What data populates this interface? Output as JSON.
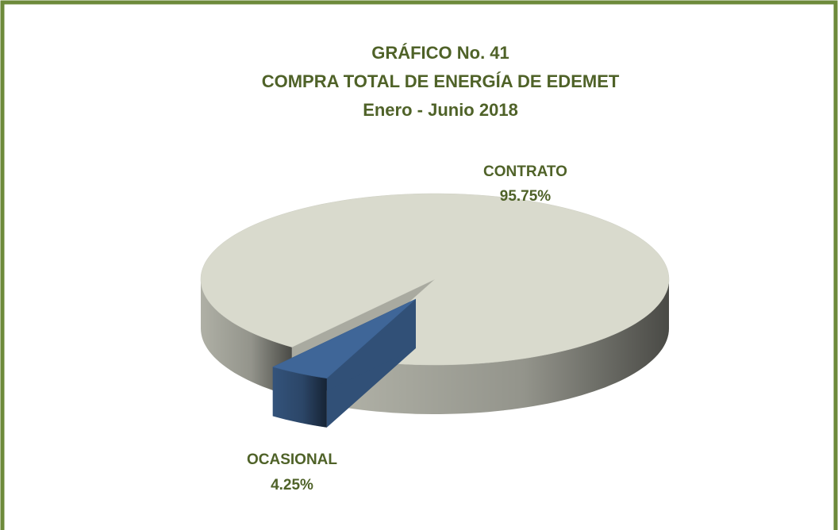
{
  "chart_data": {
    "type": "pie",
    "title": "GRÁFICO No.  41",
    "subtitle": [
      "COMPRA TOTAL DE ENERGÍA DE EDEMET",
      "Enero - Junio  2018"
    ],
    "categories": [
      "CONTRATO",
      "OCASIONAL"
    ],
    "values": [
      95.75,
      4.25
    ],
    "value_labels": [
      "95.75%",
      "4.25%"
    ],
    "colors": [
      "#d9dacd",
      "#3f6698"
    ],
    "exploded": [
      false,
      true
    ],
    "style": "3d"
  }
}
